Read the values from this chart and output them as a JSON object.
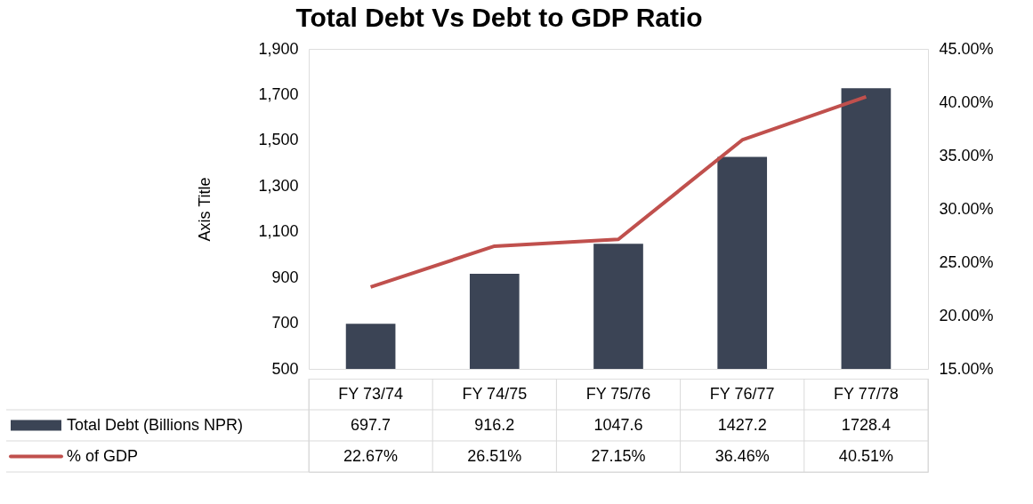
{
  "chart_data": {
    "type": "bar",
    "title": "Total Debt Vs Debt to GDP Ratio",
    "ylabel": "Axis Title",
    "categories": [
      "FY 73/74",
      "FY 74/75",
      "FY 75/76",
      "FY 76/77",
      "FY 77/78"
    ],
    "series": [
      {
        "name": "Total Debt (Billions NPR)",
        "color": "#3b4455",
        "values": [
          697.7,
          916.2,
          1047.6,
          1427.2,
          1728.4
        ],
        "value_labels": [
          "697.7",
          "916.2",
          "1047.6",
          "1427.2",
          "1728.4"
        ]
      },
      {
        "name": "% of GDP",
        "type": "line",
        "axis": "y2",
        "color": "#c0504d",
        "values": [
          22.67,
          26.51,
          27.15,
          36.46,
          40.51
        ],
        "value_labels": [
          "22.67%",
          "26.51%",
          "27.15%",
          "36.46%",
          "40.51%"
        ]
      }
    ],
    "ylim": [
      500,
      1900
    ],
    "yticks": [
      {
        "value": 500,
        "label": "500"
      },
      {
        "value": 700,
        "label": "700"
      },
      {
        "value": 900,
        "label": "900"
      },
      {
        "value": 1100,
        "label": "1,100"
      },
      {
        "value": 1300,
        "label": "1,300"
      },
      {
        "value": 1500,
        "label": "1,500"
      },
      {
        "value": 1700,
        "label": "1,700"
      },
      {
        "value": 1900,
        "label": "1,900"
      }
    ],
    "y2lim": [
      15,
      45
    ],
    "y2ticks": [
      {
        "value": 15,
        "label": "15.00%"
      },
      {
        "value": 20,
        "label": "20.00%"
      },
      {
        "value": 25,
        "label": "25.00%"
      },
      {
        "value": 30,
        "label": "30.00%"
      },
      {
        "value": 35,
        "label": "35.00%"
      },
      {
        "value": 40,
        "label": "40.00%"
      },
      {
        "value": 45,
        "label": "45.00%"
      }
    ],
    "grid": false,
    "legend": "bottom left",
    "marker": "none",
    "line_style": "solid"
  }
}
